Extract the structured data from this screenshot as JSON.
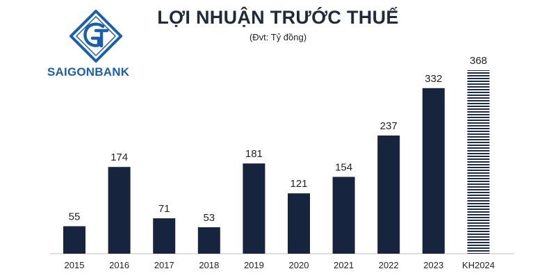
{
  "brand": {
    "name": "SAIGONBANK",
    "colors": {
      "primary": "#1b5fa8"
    },
    "logo_icon": "saigonbank-logo-icon"
  },
  "chart_data": {
    "type": "bar",
    "title": "LỢI NHUẬN TRƯỚC THUẾ",
    "subtitle": "(Đvt: Tỷ đồng)",
    "xlabel": "",
    "ylabel": "",
    "ylim": [
      0,
      368
    ],
    "grid": false,
    "legend": "none",
    "categories": [
      "2015",
      "2016",
      "2017",
      "2018",
      "2019",
      "2020",
      "2021",
      "2022",
      "2023",
      "KH2024"
    ],
    "values": [
      55,
      174,
      71,
      53,
      181,
      121,
      154,
      237,
      332,
      368
    ],
    "bar_styles": [
      "solid",
      "solid",
      "solid",
      "solid",
      "solid",
      "solid",
      "solid",
      "solid",
      "solid",
      "hatched"
    ],
    "colors": {
      "bar": "#17243d",
      "hatch": "#1b2b47",
      "hatch_bg": "#ffffff",
      "axis": "#bfbfbf"
    }
  }
}
